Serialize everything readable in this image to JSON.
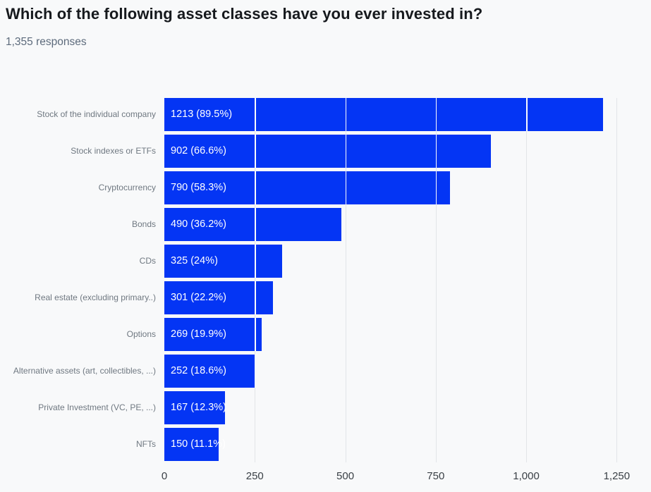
{
  "header": {
    "title": "Which of the following asset classes have you ever invested in?",
    "subtitle": "1,355 responses"
  },
  "colors": {
    "background": "#f8f9fa",
    "bar": "#0435f4",
    "gridline": "#e2e5e8",
    "gridline_on_bar": "#fafbfc",
    "title_text": "#16191d",
    "subtitle_text": "#5d6b7c",
    "y_label_text": "#6f7881",
    "x_tick_text": "#3a4046",
    "value_label_text": "#ffffff"
  },
  "chart_data": {
    "type": "bar",
    "orientation": "horizontal",
    "title": "Which of the following asset classes have you ever invested in?",
    "subtitle": "1,355 responses",
    "total_responses": 1355,
    "categories": [
      "Stock of the individual company",
      "Stock indexes or ETFs",
      "Cryptocurrency",
      "Bonds",
      "CDs",
      "Real estate (excluding primary..)",
      "Options",
      "Alternative assets (art, collectibles, ...)",
      "Private Investment (VC, PE, ...)",
      "NFTs"
    ],
    "values": [
      1213,
      902,
      790,
      490,
      325,
      301,
      269,
      252,
      167,
      150
    ],
    "percentages": [
      89.5,
      66.6,
      58.3,
      36.2,
      24,
      22.2,
      19.9,
      18.6,
      12.3,
      11.1
    ],
    "bar_labels": [
      "1213 (89.5%)",
      "902 (66.6%)",
      "790 (58.3%)",
      "490 (36.2%)",
      "325 (24%)",
      "301 (22.2%)",
      "269 (19.9%)",
      "252 (18.6%)",
      "167 (12.3%)",
      "150 (11.1%)"
    ],
    "xlim": [
      0,
      1300
    ],
    "x_ticks": [
      0,
      250,
      500,
      750,
      1000,
      1250
    ],
    "x_tick_labels": [
      "0",
      "250",
      "500",
      "750",
      "1,000",
      "1,250"
    ],
    "grid": "vertical",
    "legend": "none"
  }
}
